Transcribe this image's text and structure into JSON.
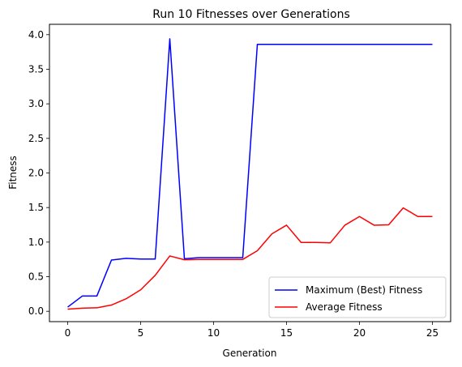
{
  "chart_data": {
    "type": "line",
    "title": "Run 10 Fitnesses over Generations",
    "xlabel": "Generation",
    "ylabel": "Fitness",
    "xlim": [
      -1.25,
      26.25
    ],
    "ylim": [
      -0.15,
      4.15
    ],
    "xticks": [
      0,
      5,
      10,
      15,
      20,
      25
    ],
    "xtick_labels": [
      "0",
      "5",
      "10",
      "15",
      "20",
      "25"
    ],
    "yticks": [
      0.0,
      0.5,
      1.0,
      1.5,
      2.0,
      2.5,
      3.0,
      3.5,
      4.0
    ],
    "ytick_labels": [
      "0.0",
      "0.5",
      "1.0",
      "1.5",
      "2.0",
      "2.5",
      "3.0",
      "3.5",
      "4.0"
    ],
    "grid": false,
    "legend_position": "lower-right",
    "x": [
      0,
      1,
      2,
      3,
      4,
      5,
      6,
      7,
      8,
      9,
      10,
      11,
      12,
      13,
      14,
      15,
      16,
      17,
      18,
      19,
      20,
      21,
      22,
      23,
      24,
      25
    ],
    "series": [
      {
        "name": "Maximum (Best) Fitness",
        "color": "#0000ff",
        "values": [
          0.06,
          0.22,
          0.22,
          0.74,
          0.765,
          0.755,
          0.755,
          3.94,
          0.76,
          0.775,
          0.775,
          0.775,
          0.775,
          3.86,
          3.86,
          3.86,
          3.86,
          3.86,
          3.86,
          3.86,
          3.86,
          3.86,
          3.86,
          3.86,
          3.86,
          3.86
        ]
      },
      {
        "name": "Average Fitness",
        "color": "#ff0000",
        "values": [
          0.03,
          0.045,
          0.05,
          0.09,
          0.18,
          0.31,
          0.52,
          0.8,
          0.745,
          0.75,
          0.75,
          0.75,
          0.75,
          0.875,
          1.12,
          1.245,
          0.995,
          0.995,
          0.99,
          1.245,
          1.37,
          1.245,
          1.25,
          1.495,
          1.37,
          1.37
        ]
      }
    ]
  }
}
